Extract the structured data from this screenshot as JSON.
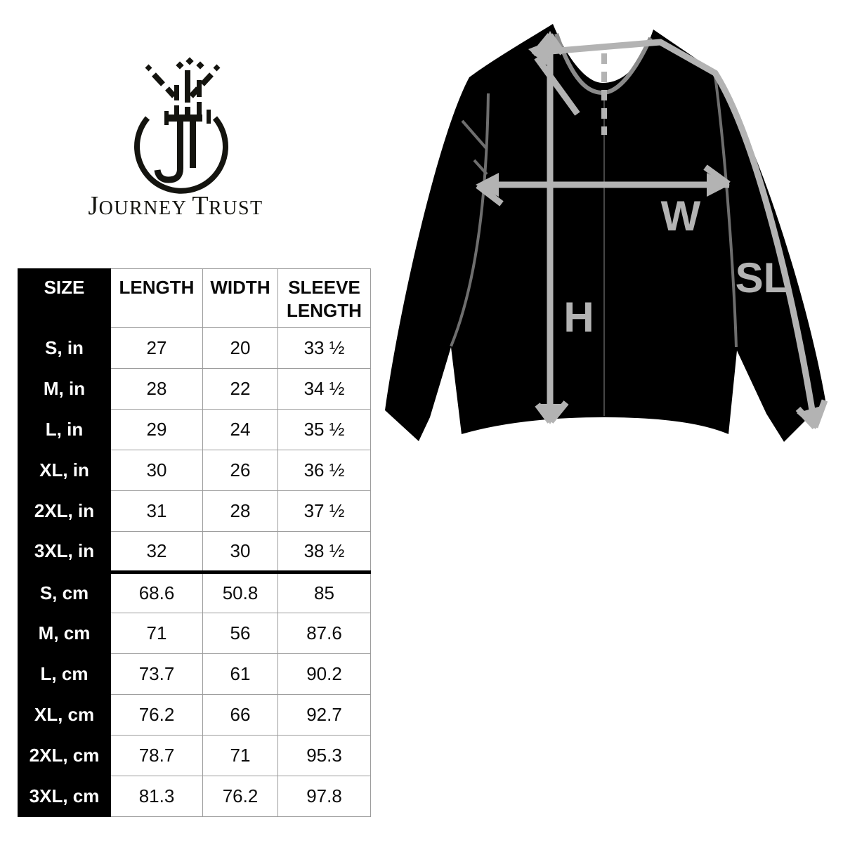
{
  "brand": {
    "monogram": "JT",
    "wordmark": {
      "initial1": "J",
      "rest1": "OURNEY",
      "initial2": "T",
      "rest2": "RUST"
    }
  },
  "size_chart": {
    "columns": [
      "SIZE",
      "LENGTH",
      "WIDTH",
      "SLEEVE LENGTH"
    ],
    "rows": [
      {
        "label": "S, in",
        "length": "27",
        "width": "20",
        "sleeve": "33 ½"
      },
      {
        "label": "M, in",
        "length": "28",
        "width": "22",
        "sleeve": "34 ½"
      },
      {
        "label": "L, in",
        "length": "29",
        "width": "24",
        "sleeve": "35 ½"
      },
      {
        "label": "XL, in",
        "length": "30",
        "width": "26",
        "sleeve": "36 ½"
      },
      {
        "label": "2XL, in",
        "length": "31",
        "width": "28",
        "sleeve": "37 ½"
      },
      {
        "label": "3XL, in",
        "length": "32",
        "width": "30",
        "sleeve": "38 ½"
      },
      {
        "label": "S, cm",
        "length": "68.6",
        "width": "50.8",
        "sleeve": "85",
        "unit_break": true
      },
      {
        "label": "M, cm",
        "length": "71",
        "width": "56",
        "sleeve": "87.6"
      },
      {
        "label": "L, cm",
        "length": "73.7",
        "width": "61",
        "sleeve": "90.2"
      },
      {
        "label": "XL, cm",
        "length": "76.2",
        "width": "66",
        "sleeve": "92.7"
      },
      {
        "label": "2XL, cm",
        "length": "78.7",
        "width": "71",
        "sleeve": "95.3"
      },
      {
        "label": "3XL, cm",
        "length": "81.3",
        "width": "76.2",
        "sleeve": "97.8"
      }
    ]
  },
  "diagram": {
    "labels": {
      "height": "H",
      "width": "W",
      "sleeve": "SL"
    },
    "colors": {
      "garment": "#000000",
      "measure_line": "#b3b3b3",
      "seam_line": "#6e6e6e",
      "collar_line": "#8a8a8a"
    }
  }
}
